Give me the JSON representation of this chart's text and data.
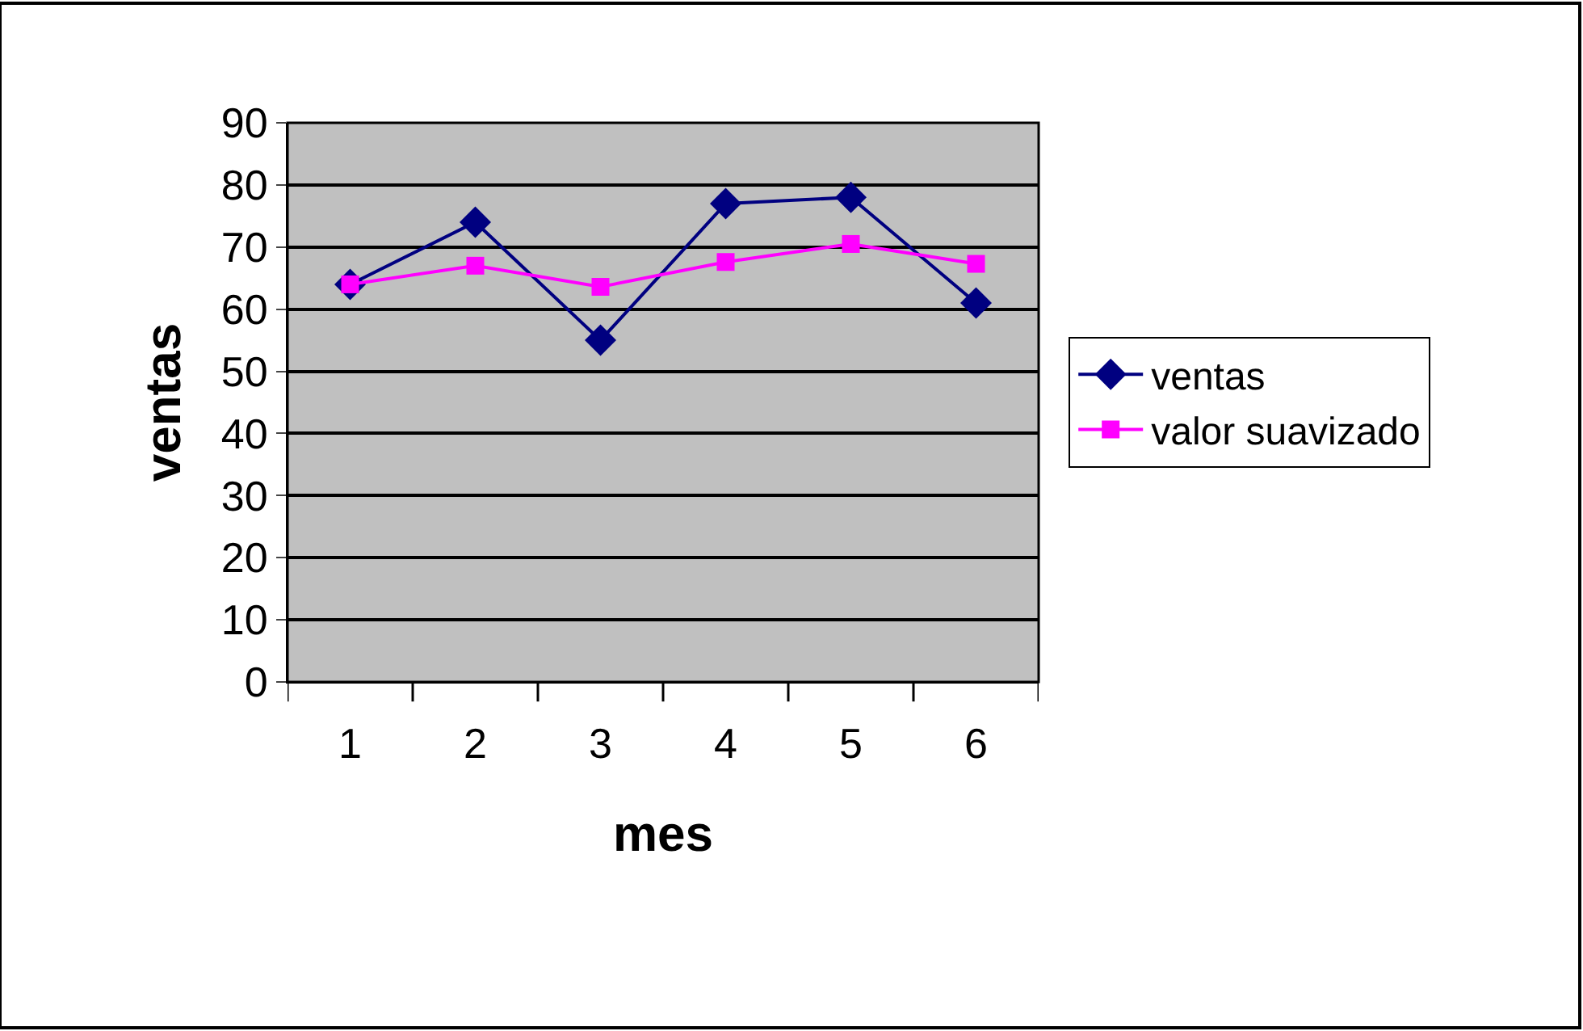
{
  "chart_data": {
    "type": "line",
    "xlabel": "mes",
    "ylabel": "ventas",
    "categories": [
      "1",
      "2",
      "3",
      "4",
      "5",
      "6"
    ],
    "series": [
      {
        "name": "ventas",
        "color": "#000080",
        "marker": "diamond",
        "values": [
          64,
          74,
          55,
          77,
          78,
          61
        ]
      },
      {
        "name": "valor suavizado",
        "color": "#ff00ff",
        "marker": "square",
        "values": [
          64,
          67,
          63.6,
          67.6,
          70.5,
          67.3
        ]
      }
    ],
    "ylim": [
      0,
      90
    ],
    "yticks": [
      0,
      10,
      20,
      30,
      40,
      50,
      60,
      70,
      80,
      90
    ],
    "grid": "y",
    "legend": "right"
  }
}
